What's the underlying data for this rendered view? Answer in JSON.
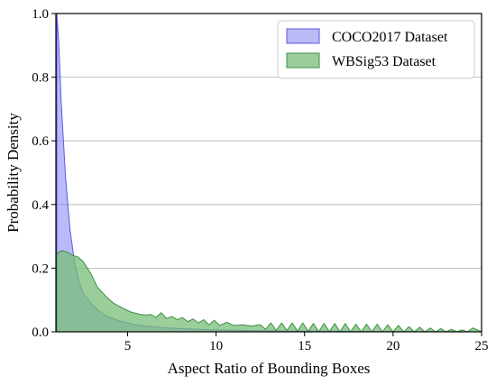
{
  "chart_data": {
    "type": "area",
    "xlabel": "Aspect Ratio of Bounding Boxes",
    "ylabel": "Probability Density",
    "xlim": [
      0.95,
      25
    ],
    "ylim": [
      0,
      1.0
    ],
    "x_ticks": [
      5,
      10,
      15,
      20,
      25
    ],
    "x_tick_labels": [
      "5",
      "10",
      "15",
      "20",
      "25"
    ],
    "y_ticks": [
      0.0,
      0.2,
      0.4,
      0.6,
      0.8,
      1.0
    ],
    "y_tick_labels": [
      "0.0",
      "0.2",
      "0.4",
      "0.6",
      "0.8",
      "1.0"
    ],
    "grid": "horizontal",
    "legend_position": "top-right",
    "series": [
      {
        "name": "COCO2017 Dataset",
        "color": "#8c8cf0",
        "edge_color": "#5a5ae6",
        "x": [
          1.0,
          1.1,
          1.25,
          1.5,
          1.75,
          2.0,
          2.25,
          2.5,
          3.0,
          3.5,
          4.0,
          4.5,
          5.0,
          5.5,
          6.0,
          7.0,
          8.0,
          9.0,
          10.0,
          12.0,
          14.0,
          17.0,
          20.0,
          25.0
        ],
        "y": [
          1.0,
          0.92,
          0.72,
          0.48,
          0.32,
          0.22,
          0.16,
          0.12,
          0.085,
          0.06,
          0.045,
          0.035,
          0.028,
          0.022,
          0.018,
          0.013,
          0.01,
          0.008,
          0.006,
          0.004,
          0.003,
          0.002,
          0.001,
          0.0
        ]
      },
      {
        "name": "WBSig53 Dataset",
        "color": "#78be78",
        "edge_color": "#3f8f3f",
        "x": [
          1.0,
          1.1,
          1.3,
          1.6,
          1.9,
          2.2,
          2.5,
          2.9,
          3.3,
          3.8,
          4.2,
          4.7,
          5.2,
          5.7,
          6.1,
          6.3,
          6.6,
          6.9,
          7.2,
          7.5,
          7.8,
          8.1,
          8.4,
          8.7,
          9.0,
          9.3,
          9.6,
          9.9,
          10.2,
          10.6,
          11.0,
          11.5,
          12.0,
          12.5,
          12.8,
          13.1,
          13.4,
          13.7,
          14.0,
          14.3,
          14.6,
          14.9,
          15.2,
          15.5,
          15.8,
          16.1,
          16.4,
          16.7,
          17.0,
          17.3,
          17.6,
          17.9,
          18.2,
          18.5,
          18.8,
          19.1,
          19.4,
          19.7,
          20.0,
          20.3,
          20.6,
          20.9,
          21.2,
          21.5,
          21.8,
          22.1,
          22.4,
          22.7,
          23.0,
          23.3,
          23.6,
          23.9,
          24.2,
          24.5,
          25.0
        ],
        "y": [
          0.24,
          0.25,
          0.255,
          0.25,
          0.24,
          0.235,
          0.22,
          0.185,
          0.14,
          0.11,
          0.09,
          0.075,
          0.062,
          0.055,
          0.052,
          0.055,
          0.045,
          0.06,
          0.042,
          0.048,
          0.038,
          0.045,
          0.032,
          0.04,
          0.028,
          0.038,
          0.022,
          0.036,
          0.02,
          0.03,
          0.02,
          0.022,
          0.018,
          0.022,
          0.008,
          0.028,
          0.004,
          0.028,
          0.004,
          0.028,
          0.002,
          0.028,
          0.002,
          0.026,
          0.0,
          0.026,
          0.0,
          0.026,
          0.0,
          0.026,
          0.0,
          0.024,
          0.0,
          0.024,
          0.0,
          0.024,
          0.0,
          0.022,
          0.0,
          0.02,
          0.0,
          0.016,
          0.0,
          0.014,
          0.0,
          0.012,
          0.0,
          0.01,
          0.0,
          0.008,
          0.0,
          0.006,
          0.0,
          0.012,
          0.0
        ]
      }
    ]
  }
}
